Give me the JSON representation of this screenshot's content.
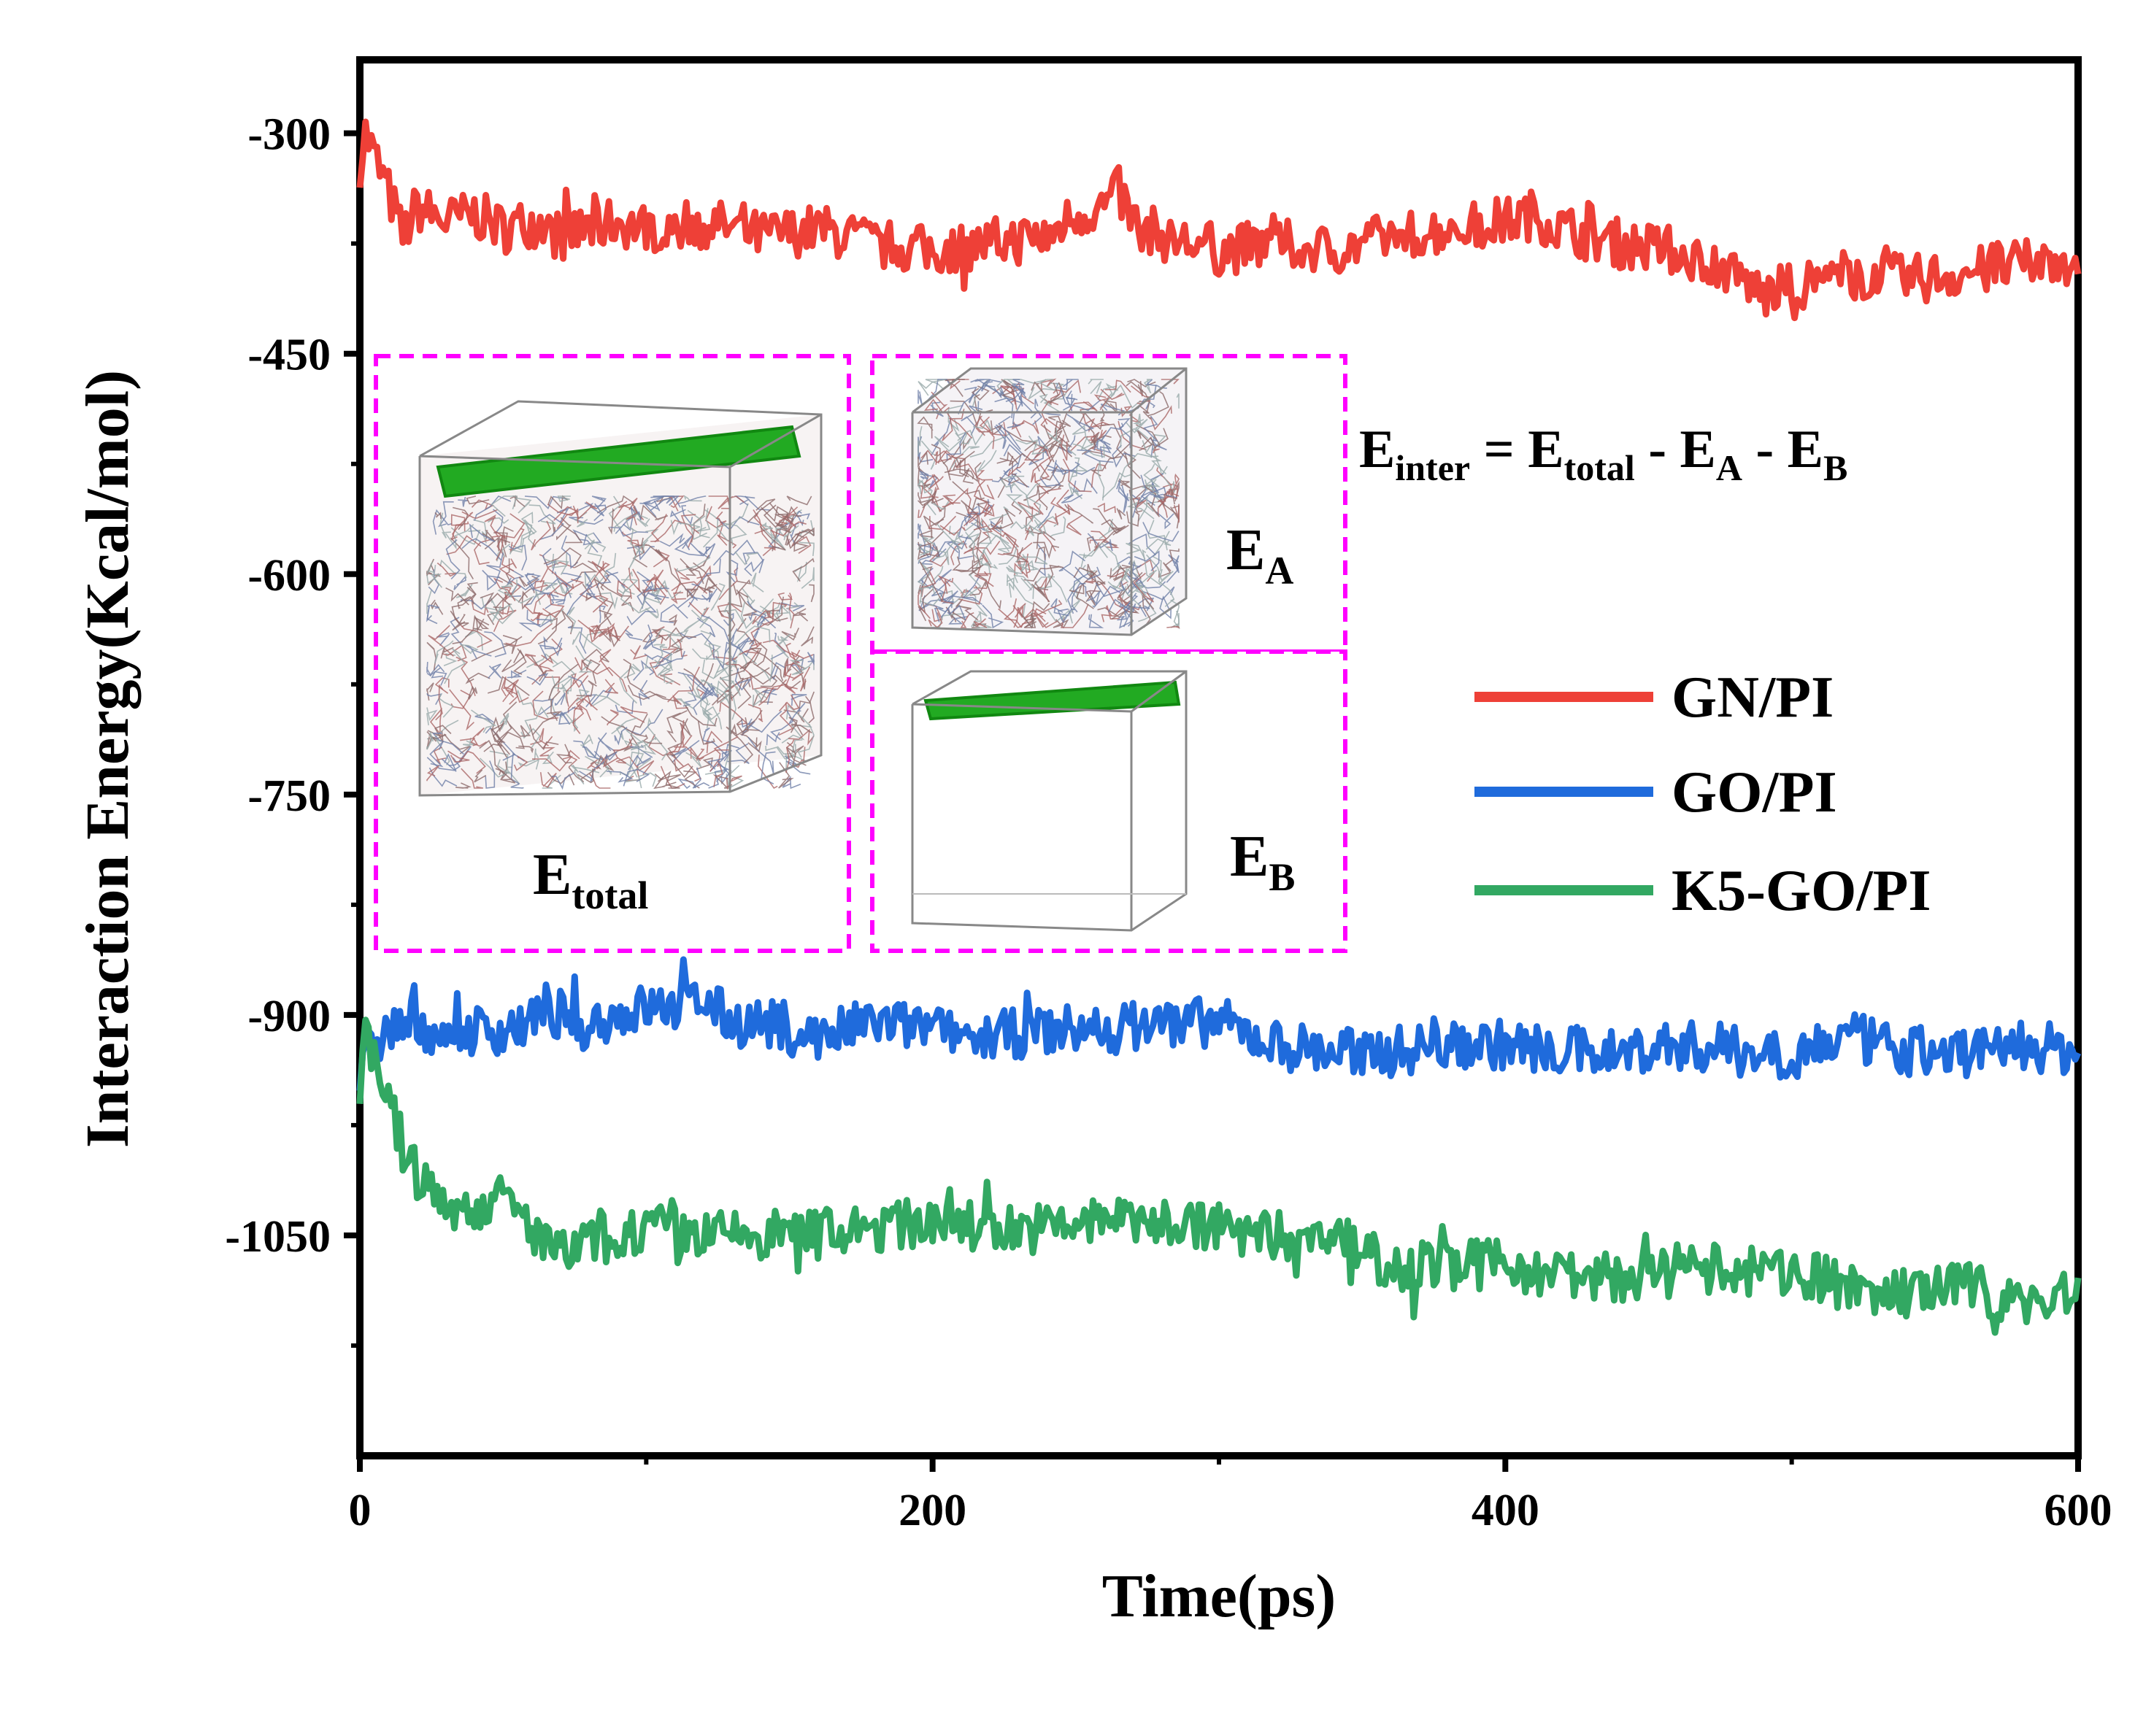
{
  "chart_data": {
    "type": "line",
    "xlabel": "Time(ps)",
    "ylabel": "Interaction Energy(Kcal/mol)",
    "xlim": [
      0,
      600
    ],
    "ylim": [
      -1200,
      -250
    ],
    "xticks": [
      0,
      200,
      400,
      600
    ],
    "xtick_labels": [
      "0",
      "200",
      "400",
      "600"
    ],
    "yticks": [
      -300,
      -450,
      -600,
      -750,
      -900,
      -1050
    ],
    "ytick_labels": [
      "-300",
      "-450",
      "-600",
      "-750",
      "-900",
      "-1050"
    ],
    "grid": false,
    "legend": "center-right",
    "series": [
      {
        "name": "GN/PI",
        "color": "#ee4037",
        "x": [
          0,
          2,
          5,
          10,
          15,
          20,
          30,
          40,
          50,
          60,
          70,
          80,
          90,
          100,
          120,
          140,
          160,
          180,
          200,
          220,
          240,
          250,
          260,
          265,
          270,
          280,
          300,
          320,
          340,
          360,
          380,
          400,
          410,
          420,
          440,
          460,
          480,
          490,
          500,
          520,
          540,
          560,
          580,
          600
        ],
        "values": [
          -320,
          -300,
          -315,
          -340,
          -370,
          -350,
          -360,
          -355,
          -365,
          -360,
          -370,
          -365,
          -360,
          -365,
          -360,
          -370,
          -365,
          -375,
          -380,
          -375,
          -370,
          -355,
          -350,
          -340,
          -360,
          -370,
          -380,
          -375,
          -380,
          -370,
          -365,
          -360,
          -355,
          -365,
          -375,
          -380,
          -395,
          -410,
          -405,
          -395,
          -400,
          -395,
          -390,
          -385
        ]
      },
      {
        "name": "GO/PI",
        "color": "#1f6bdc",
        "x": [
          0,
          2,
          5,
          10,
          20,
          30,
          40,
          50,
          60,
          70,
          80,
          90,
          100,
          110,
          120,
          130,
          140,
          160,
          180,
          200,
          220,
          240,
          260,
          280,
          300,
          320,
          340,
          360,
          380,
          400,
          420,
          440,
          460,
          480,
          500,
          520,
          540,
          560,
          580,
          600
        ],
        "values": [
          -950,
          -930,
          -920,
          -910,
          -905,
          -915,
          -910,
          -910,
          -905,
          -900,
          -905,
          -900,
          -895,
          -895,
          -890,
          -905,
          -905,
          -915,
          -905,
          -910,
          -915,
          -910,
          -910,
          -905,
          -905,
          -920,
          -925,
          -925,
          -920,
          -920,
          -925,
          -925,
          -920,
          -925,
          -925,
          -915,
          -925,
          -925,
          -920,
          -925
        ]
      },
      {
        "name": "K5-GO/PI",
        "color": "#32a862",
        "x": [
          0,
          2,
          5,
          10,
          15,
          20,
          30,
          40,
          50,
          60,
          70,
          80,
          90,
          100,
          120,
          140,
          160,
          170,
          180,
          200,
          220,
          240,
          260,
          280,
          300,
          320,
          340,
          350,
          360,
          380,
          400,
          420,
          440,
          460,
          480,
          500,
          520,
          540,
          560,
          580,
          600
        ],
        "values": [
          -960,
          -900,
          -930,
          -960,
          -990,
          -1010,
          -1030,
          -1030,
          -1025,
          -1045,
          -1065,
          -1055,
          -1050,
          -1045,
          -1050,
          -1050,
          -1045,
          -1050,
          -1045,
          -1040,
          -1045,
          -1045,
          -1040,
          -1040,
          -1045,
          -1050,
          -1050,
          -1060,
          -1070,
          -1070,
          -1070,
          -1075,
          -1080,
          -1070,
          -1075,
          -1075,
          -1085,
          -1090,
          -1085,
          -1095,
          -1090
        ]
      }
    ],
    "annotations": {
      "equation": {
        "E1": "E",
        "sub_inter": "inter",
        "eq": " = ",
        "E2": "E",
        "sub_total": "total",
        "m1": " - ",
        "E3": "E",
        "sub_A": "A",
        "m2": " - ",
        "E4": "E",
        "sub_B": "B"
      },
      "inset_labels": {
        "total": {
          "main": "E",
          "sub": "total"
        },
        "A": {
          "main": "E",
          "sub": "A"
        },
        "B": {
          "main": "E",
          "sub": "B"
        }
      }
    }
  },
  "colors": {
    "inset_border": "#ff00ff",
    "graphene_sheet": "#22aa22",
    "box_edges": "#888888",
    "molecule_strands": [
      "#8c6a6a",
      "#6f7fa8",
      "#a66",
      "#9aa"
    ]
  }
}
